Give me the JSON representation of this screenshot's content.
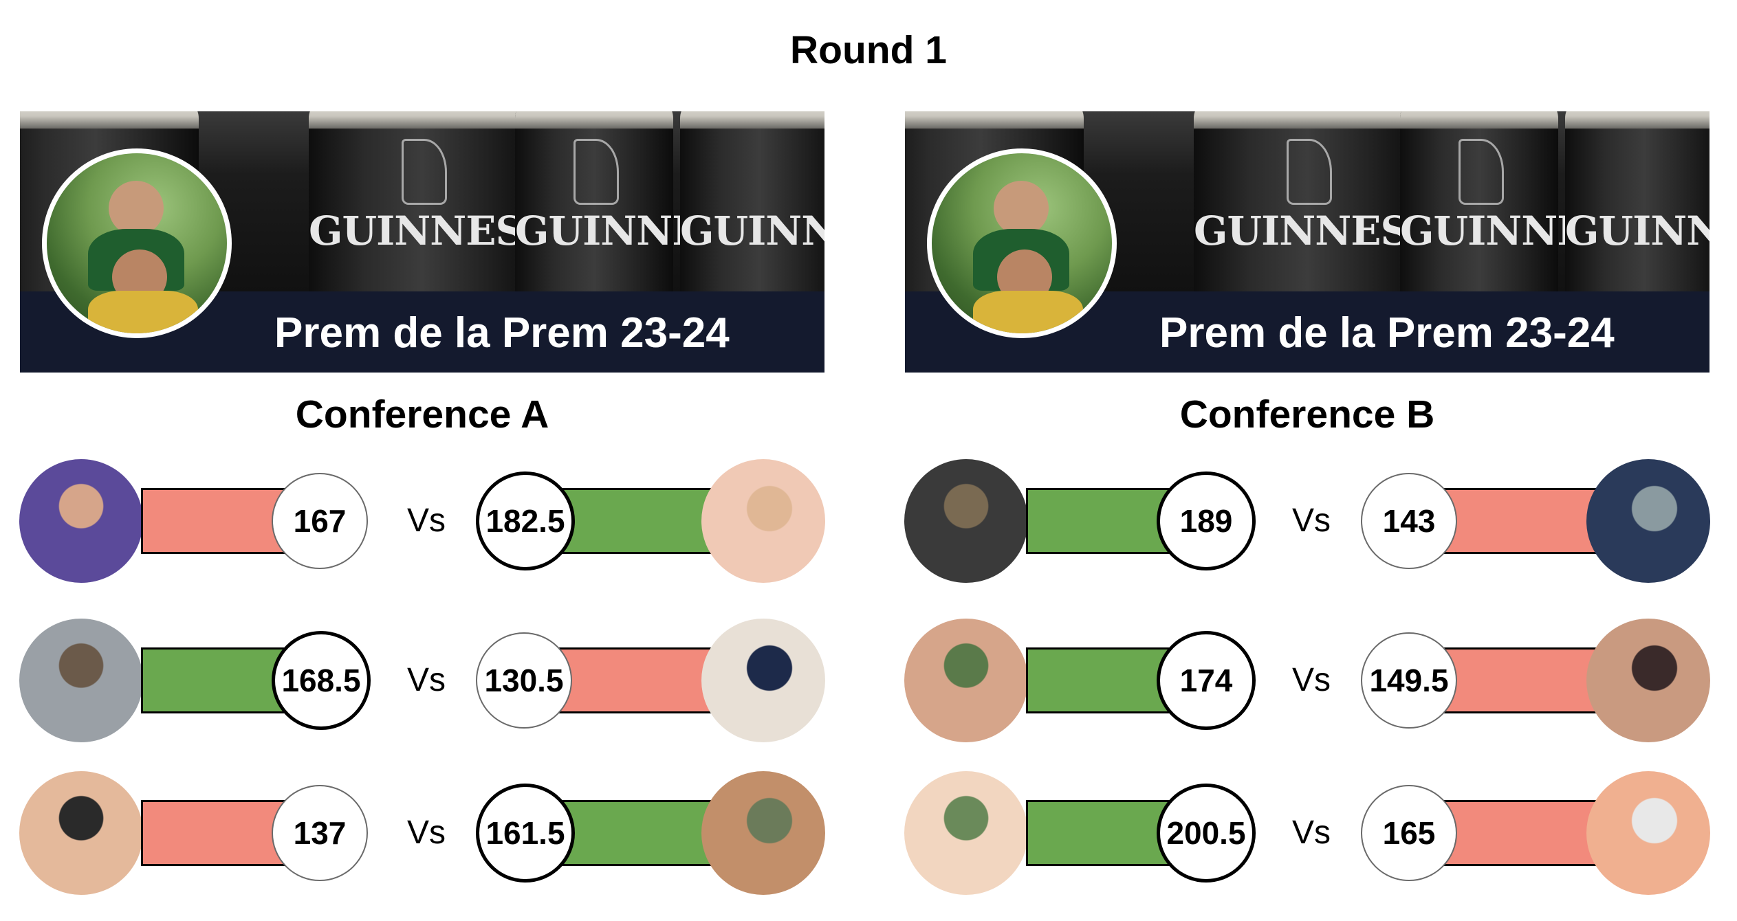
{
  "round_title": "Round 1",
  "banner": {
    "title": "Prem de la Prem 23-24",
    "glass_brand": "GUINNESS"
  },
  "conferences": [
    {
      "title": "Conference A",
      "matchups": [
        {
          "left_score": "167",
          "right_score": "182.5",
          "vs": "Vs",
          "left_result": "lose",
          "right_result": "win"
        },
        {
          "left_score": "168.5",
          "right_score": "130.5",
          "vs": "Vs",
          "left_result": "win",
          "right_result": "lose"
        },
        {
          "left_score": "137",
          "right_score": "161.5",
          "vs": "Vs",
          "left_result": "lose",
          "right_result": "win"
        }
      ]
    },
    {
      "title": "Conference B",
      "matchups": [
        {
          "left_score": "189",
          "right_score": "143",
          "vs": "Vs",
          "left_result": "win",
          "right_result": "lose"
        },
        {
          "left_score": "174",
          "right_score": "149.5",
          "vs": "Vs",
          "left_result": "win",
          "right_result": "lose"
        },
        {
          "left_score": "200.5",
          "right_score": "165",
          "vs": "Vs",
          "left_result": "win",
          "right_result": "lose"
        }
      ]
    }
  ],
  "colors": {
    "win": "#6aa84f",
    "lose": "#f28a7c",
    "banner_strip": "#141a2e"
  }
}
